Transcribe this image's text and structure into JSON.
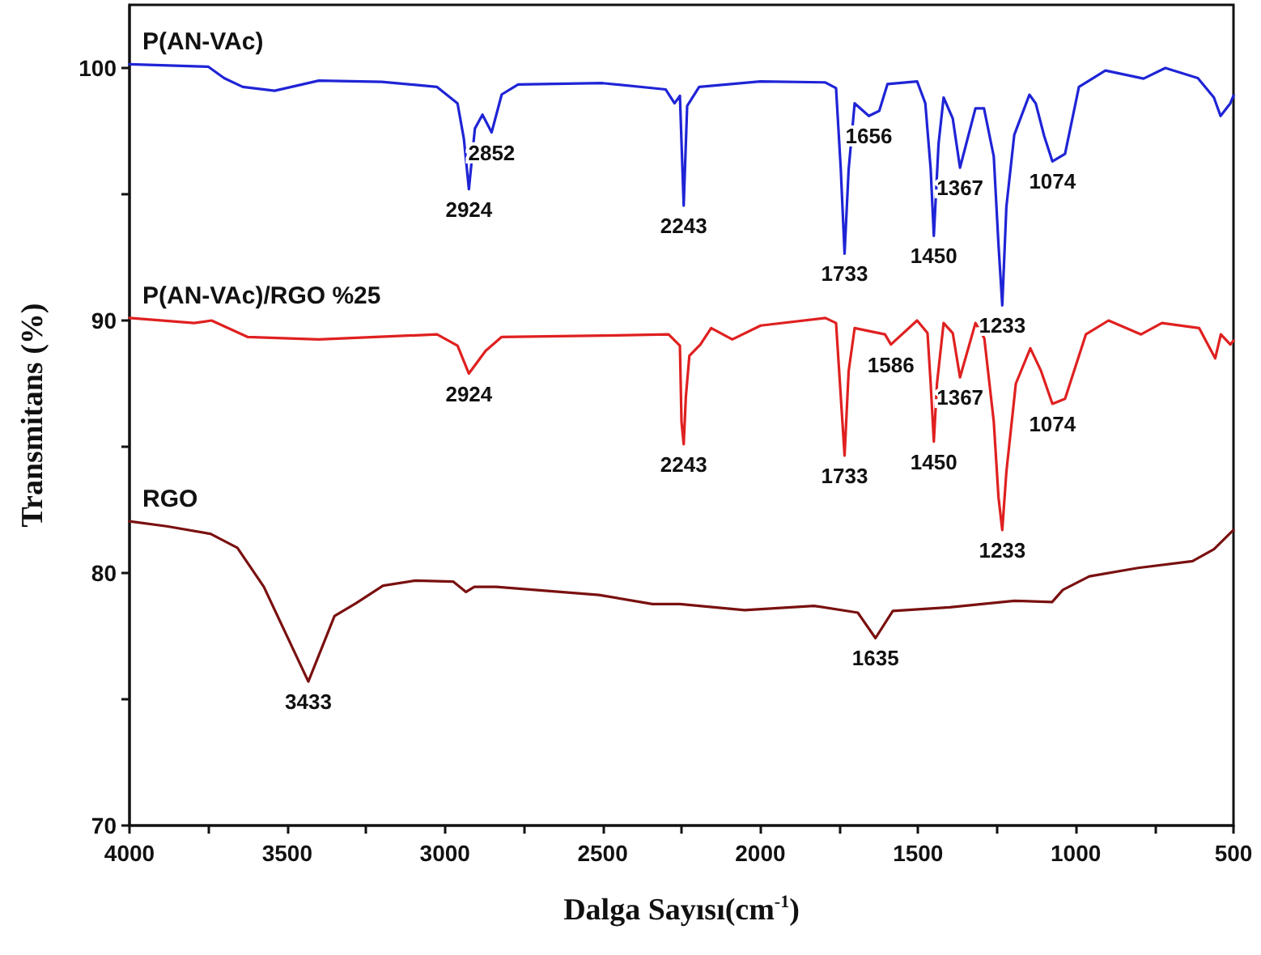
{
  "chart_data": {
    "type": "line",
    "xlabel": "Dalga Sayısı(cm$^{-1}$)",
    "ylabel": "Transmitans (%)",
    "xlim": [
      4000,
      500
    ],
    "xticks": [
      4000,
      {
        "value": 3750,
        "label": null
      },
      3500,
      {
        "value": 3250,
        "label": null
      },
      3000,
      {
        "value": 2750,
        "label": null
      },
      2500,
      {
        "value": 2250,
        "label": null
      },
      2000,
      {
        "value": 1750,
        "label": null
      },
      1500,
      {
        "value": 1250,
        "label": null
      },
      1000,
      {
        "value": 750,
        "label": null
      },
      500
    ],
    "ylim": [
      70,
      102.5
    ],
    "yticks": [
      70,
      {
        "value": 75,
        "label": null
      },
      80,
      {
        "value": 85,
        "label": null
      },
      90,
      {
        "value": 95,
        "label": null
      },
      100
    ],
    "grid": false,
    "legend": false,
    "marker": "none",
    "line_style": "solid",
    "series": [
      {
        "name": "P(AN-VAc)",
        "color": "#1f24d6",
        "x": [
          4000,
          3750,
          3700,
          3641,
          3540,
          3400,
          3200,
          3025,
          2960,
          2940,
          2924,
          2905,
          2881,
          2852,
          2820,
          2768,
          2500,
          2300,
          2272,
          2255,
          2243,
          2232,
          2194,
          2000,
          1794,
          1760,
          1745,
          1733,
          1720,
          1701,
          1656,
          1623,
          1597,
          1503,
          1477,
          1460,
          1450,
          1435,
          1419,
          1390,
          1367,
          1318,
          1291,
          1260,
          1245,
          1233,
          1220,
          1195,
          1147,
          1127,
          1100,
          1074,
          1034,
          990,
          906,
          785,
          716,
          613,
          562,
          541,
          510,
          500
        ],
        "values": [
          100.15,
          100.05,
          99.6,
          99.25,
          99.1,
          99.5,
          99.45,
          99.25,
          98.6,
          97.2,
          95.2,
          97.6,
          98.15,
          97.45,
          98.95,
          99.35,
          99.4,
          99.15,
          98.6,
          98.9,
          94.55,
          98.5,
          99.25,
          99.47,
          99.43,
          99.2,
          96,
          92.65,
          96,
          98.6,
          98.1,
          98.3,
          99.36,
          99.47,
          98.6,
          96,
          93.35,
          97,
          98.83,
          98,
          96.05,
          98.4,
          98.4,
          96.5,
          93,
          90.6,
          94.5,
          97.35,
          98.94,
          98.6,
          97.3,
          96.3,
          96.6,
          99.25,
          99.9,
          99.58,
          100,
          99.6,
          98.83,
          98.1,
          98.6,
          98.9
        ]
      },
      {
        "name": "P(AN-VAc)/RGO %25",
        "color": "#e02020",
        "x": [
          4000,
          3795,
          3740,
          3626,
          3400,
          3025,
          2960,
          2924,
          2871,
          2820,
          2500,
          2291,
          2255,
          2250,
          2243,
          2236,
          2225,
          2190,
          2156,
          2089,
          1999,
          1794,
          1760,
          1745,
          1733,
          1720,
          1701,
          1605,
          1586,
          1503,
          1470,
          1460,
          1450,
          1440,
          1419,
          1390,
          1367,
          1318,
          1290,
          1260,
          1245,
          1233,
          1220,
          1190,
          1144,
          1110,
          1074,
          1034,
          968,
          896,
          793,
          727,
          609,
          558,
          540,
          510,
          500
        ],
        "values": [
          90.1,
          89.9,
          90.0,
          89.35,
          89.25,
          89.45,
          89.0,
          87.9,
          88.8,
          89.35,
          89.4,
          89.45,
          89.0,
          86,
          85.1,
          87,
          88.6,
          89.05,
          89.7,
          89.25,
          89.8,
          90.1,
          89.9,
          87,
          84.65,
          88,
          89.7,
          89.45,
          89.05,
          90.0,
          89.5,
          87.5,
          85.2,
          87.5,
          89.9,
          89.5,
          87.75,
          89.9,
          89.3,
          86,
          83,
          81.7,
          84,
          87.5,
          88.9,
          88,
          86.7,
          86.9,
          89.45,
          90.0,
          89.45,
          89.9,
          89.7,
          88.5,
          89.45,
          89.05,
          89.2
        ]
      },
      {
        "name": "RGO",
        "color": "#7a1010",
        "x": [
          4000,
          3882,
          3743,
          3658,
          3574,
          3433,
          3350,
          3282,
          3196,
          3094,
          2974,
          2933,
          2907,
          2837,
          2512,
          2342,
          2255,
          2050,
          1830,
          1691,
          1635,
          1580,
          1400,
          1195,
          1075,
          1041,
          957,
          803,
          630,
          562,
          510,
          500
        ],
        "values": [
          82.05,
          81.85,
          81.55,
          81.0,
          79.45,
          75.7,
          78.3,
          78.8,
          79.5,
          79.7,
          79.66,
          79.25,
          79.45,
          79.45,
          79.13,
          78.77,
          78.77,
          78.53,
          78.7,
          78.43,
          77.42,
          78.5,
          78.64,
          78.9,
          78.85,
          79.33,
          79.87,
          80.2,
          80.47,
          80.94,
          81.58,
          81.7
        ]
      }
    ],
    "annotations": [
      {
        "text": "2924",
        "x": 2924,
        "y": 95.2
      },
      {
        "text": "2852",
        "x": 2852,
        "y": 97.45
      },
      {
        "text": "2243",
        "x": 2243,
        "y": 94.55
      },
      {
        "text": "1656",
        "x": 1656,
        "y": 98.1
      },
      {
        "text": "1074",
        "x": 1074,
        "y": 96.3
      },
      {
        "text": "1450",
        "x": 1450,
        "y": 93.35
      },
      {
        "text": "1733",
        "x": 1733,
        "y": 92.65
      },
      {
        "text": "1367",
        "x": 1367,
        "y": 96.05
      },
      {
        "text": "1233",
        "x": 1233,
        "y": 90.6
      },
      {
        "text": "2924",
        "x": 2924,
        "y": 87.9
      },
      {
        "text": "2243",
        "x": 2243,
        "y": 85.1
      },
      {
        "text": "1586",
        "x": 1586,
        "y": 89.05
      },
      {
        "text": "1733",
        "x": 1733,
        "y": 84.65
      },
      {
        "text": "1450",
        "x": 1450,
        "y": 85.2
      },
      {
        "text": "1367",
        "x": 1367,
        "y": 87.75
      },
      {
        "text": "1233",
        "x": 1233,
        "y": 81.7
      },
      {
        "text": "1074",
        "x": 1074,
        "y": 86.7
      },
      {
        "text": "3433",
        "x": 3433,
        "y": 75.7
      },
      {
        "text": "1635",
        "x": 1635,
        "y": 77.42
      }
    ]
  }
}
